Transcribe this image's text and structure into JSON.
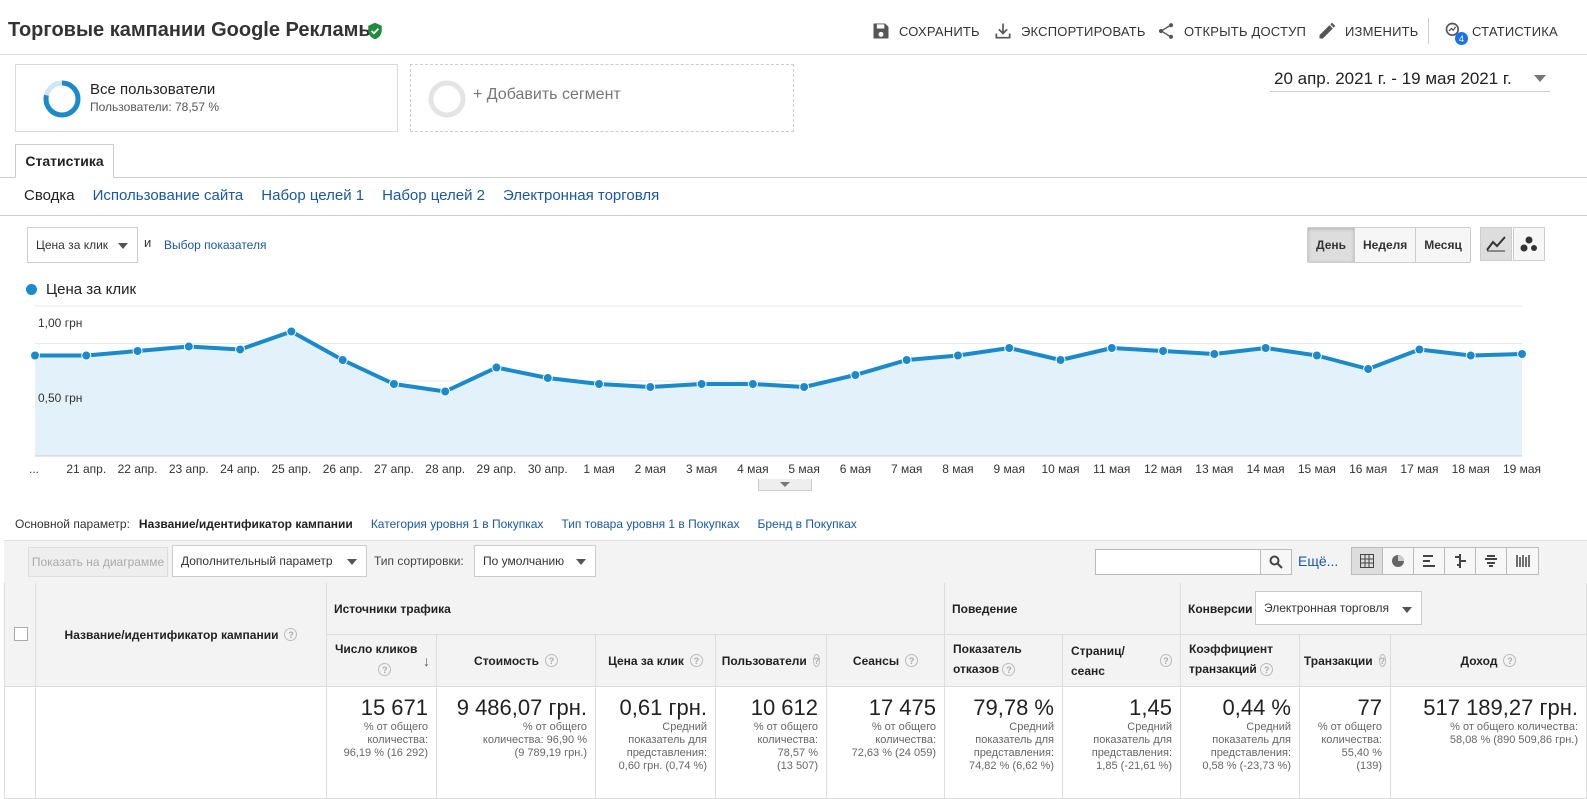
{
  "header": {
    "title": "Торговые кампании Google Рекламы",
    "actions": {
      "save": "СОХРАНИТЬ",
      "export": "ЭКСПОРТИРОВАТЬ",
      "share": "ОТКРЫТЬ ДОСТУП",
      "edit": "ИЗМЕНИТЬ",
      "insights": "СТАТИСТИКА",
      "insights_badge": "4"
    }
  },
  "segments": {
    "all_users": {
      "title": "Все пользователи",
      "subtitle": "Пользователи: 78,57 %",
      "ring_fraction": 0.7857
    },
    "add_segment": "+ Добавить сегмент"
  },
  "date_range": "20 апр. 2021 г. - 19 мая 2021 г.",
  "tabs": {
    "main": "Статистика"
  },
  "subnav": [
    "Сводка",
    "Использование сайта",
    "Набор целей 1",
    "Набор целей 2",
    "Электронная торговля"
  ],
  "chart_controls": {
    "metric": "Цена за клик",
    "and": "и",
    "choose_metric": "Выбор показателя",
    "periods": [
      "День",
      "Неделя",
      "Месяц"
    ],
    "active_period": "День"
  },
  "colors": {
    "accent": "#1a8acb",
    "area": "#e3f1fa",
    "link": "#1a57a8"
  },
  "chart_data": {
    "type": "area",
    "legend": "Цена за клик",
    "y_tick_labels": [
      "1,00 грн",
      "0,50 грн"
    ],
    "y_ticks": [
      1.0,
      0.5
    ],
    "ylim": [
      0,
      1.0
    ],
    "x": [
      "...",
      "21 апр.",
      "22 апр.",
      "23 апр.",
      "24 апр.",
      "25 апр.",
      "26 апр.",
      "27 апр.",
      "28 апр.",
      "29 апр.",
      "30 апр.",
      "1 мая",
      "2 мая",
      "3 мая",
      "4 мая",
      "5 мая",
      "6 мая",
      "7 мая",
      "8 мая",
      "9 мая",
      "10 мая",
      "11 мая",
      "12 мая",
      "13 мая",
      "14 мая",
      "15 мая",
      "16 мая",
      "17 мая",
      "18 мая",
      "19 мая"
    ],
    "series": [
      {
        "name": "Цена за клик",
        "values": [
          0.67,
          0.67,
          0.7,
          0.73,
          0.71,
          0.83,
          0.64,
          0.48,
          0.43,
          0.59,
          0.52,
          0.48,
          0.46,
          0.48,
          0.48,
          0.46,
          0.54,
          0.64,
          0.67,
          0.72,
          0.64,
          0.72,
          0.7,
          0.68,
          0.72,
          0.67,
          0.58,
          0.71,
          0.67,
          0.68
        ]
      }
    ]
  },
  "dimension": {
    "label": "Основной параметр:",
    "current": "Название/идентификатор кампании",
    "options": [
      "Категория уровня 1 в Покупках",
      "Тип товара уровня 1 в Покупках",
      "Бренд в Покупках"
    ]
  },
  "toolbar": {
    "plot_rows": "Показать на диаграмме",
    "secondary_dim": "Дополнительный параметр",
    "sort_label": "Тип сортировки:",
    "sort_value": "По умолчанию",
    "more": "Ещё..."
  },
  "table": {
    "dim_header": "Название/идентификатор кампании",
    "groups": {
      "acquisition": "Источники трафика",
      "behavior": "Поведение",
      "conversions": "Конверсии",
      "conversions_select": "Электронная торговля"
    },
    "columns": [
      {
        "h1": "Число кликов",
        "h2": "",
        "value": "15 671",
        "sub": [
          "% от общего",
          "количества:",
          "96,19 % (16 292)"
        ]
      },
      {
        "h1": "Стоимость",
        "h2": "",
        "value": "9 486,07 грн.",
        "sub": [
          "% от общего",
          "количества: 96,90 %",
          "(9 789,19 грн.)"
        ]
      },
      {
        "h1": "Цена за клик",
        "h2": "",
        "value": "0,61 грн.",
        "sub": [
          "Средний",
          "показатель для",
          "представления:",
          "0,60 грн. (0,74 %)"
        ]
      },
      {
        "h1": "Пользователи",
        "h2": "",
        "value": "10 612",
        "sub": [
          "% от общего",
          "количества:",
          "78,57 %",
          "(13 507)"
        ]
      },
      {
        "h1": "Сеансы",
        "h2": "",
        "value": "17 475",
        "sub": [
          "% от общего",
          "количества:",
          "72,63 % (24 059)"
        ]
      },
      {
        "h1": "Показатель",
        "h2": "отказов",
        "value": "79,78 %",
        "sub": [
          "Средний",
          "показатель для",
          "представления:",
          "74,82 % (6,62 %)"
        ]
      },
      {
        "h1": "Страниц/сеанс",
        "h2": "",
        "value": "1,45",
        "sub": [
          "Средний",
          "показатель для",
          "представления:",
          "1,85 (-21,61 %)"
        ]
      },
      {
        "h1": "Коэффициент",
        "h2": "транзакций",
        "value": "0,44 %",
        "sub": [
          "Средний",
          "показатель для",
          "представления:",
          "0,58 % (-23,73 %)"
        ]
      },
      {
        "h1": "Транзакции",
        "h2": "",
        "value": "77",
        "sub": [
          "% от общего",
          "количества:",
          "55,40 %",
          "(139)"
        ]
      },
      {
        "h1": "Доход",
        "h2": "",
        "value": "517 189,27 грн.",
        "sub": [
          "% от общего количества:",
          "58,08 % (890 509,86 грн.)"
        ]
      }
    ]
  }
}
